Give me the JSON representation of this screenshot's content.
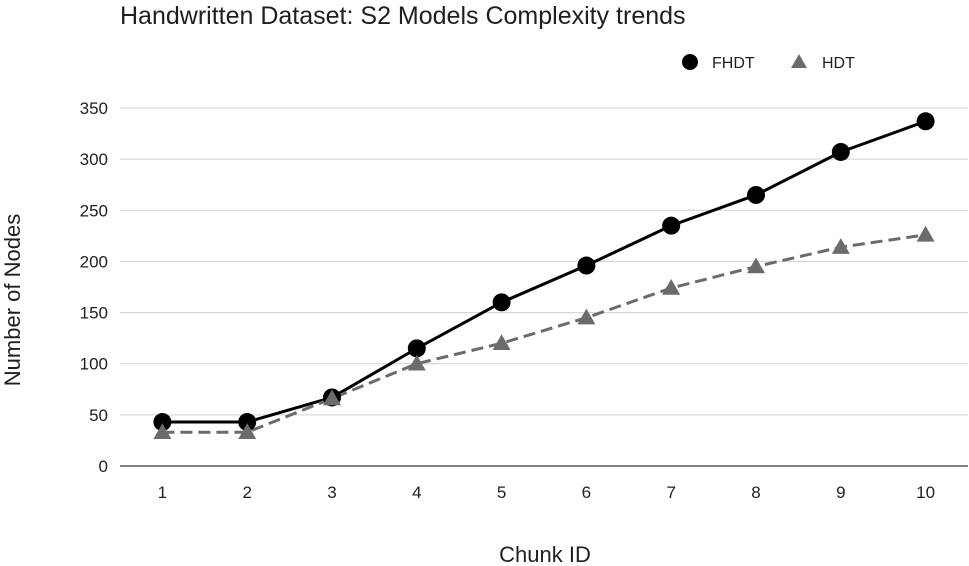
{
  "chart_data": {
    "type": "line",
    "title": "Handwritten Dataset: S2 Models Complexity trends",
    "xlabel": "Chunk ID",
    "ylabel": "Number of Nodes",
    "categories": [
      "1",
      "2",
      "3",
      "4",
      "5",
      "6",
      "7",
      "8",
      "9",
      "10"
    ],
    "ylim": [
      0,
      350
    ],
    "yticks": [
      0,
      50,
      100,
      150,
      200,
      250,
      300,
      350
    ],
    "grid": true,
    "legend_position": "top-right",
    "series": [
      {
        "name": "FHDT",
        "values": [
          43,
          43,
          67,
          115,
          160,
          196,
          235,
          265,
          307,
          337
        ],
        "color": "#000000",
        "marker": "circle",
        "line_style": "solid"
      },
      {
        "name": "HDT",
        "values": [
          33,
          33,
          66,
          100,
          120,
          145,
          174,
          195,
          214,
          226
        ],
        "color": "#6b6b6b",
        "marker": "triangle",
        "line_style": "dashed"
      }
    ]
  }
}
